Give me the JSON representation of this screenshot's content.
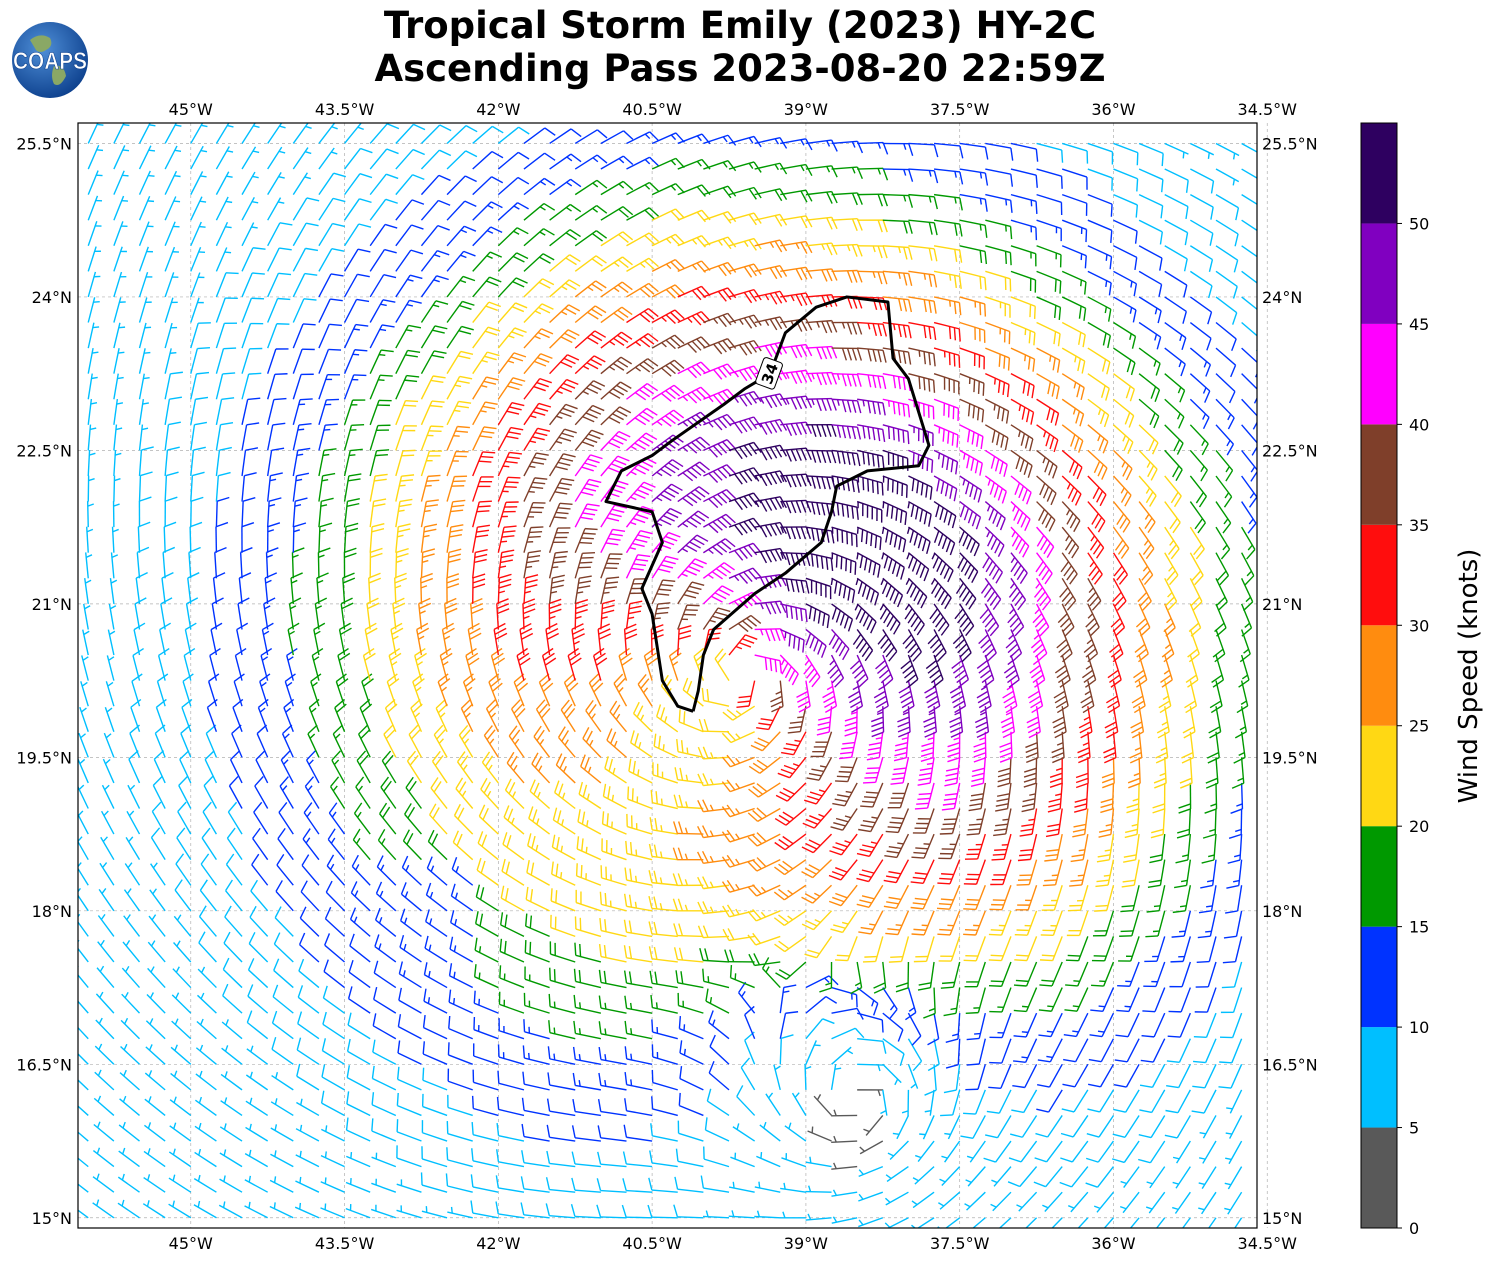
{
  "title": {
    "line1": "Tropical Storm Emily (2023) HY-2C",
    "line2": "Ascending Pass 2023-08-20 22:59Z"
  },
  "logo": {
    "text": "COAPS",
    "icon": "globe-logo-icon"
  },
  "map": {
    "lon_range": [
      -46.1,
      -34.6
    ],
    "lat_range": [
      14.9,
      25.7
    ],
    "lon_ticks": [
      -45,
      -43.5,
      -42,
      -40.5,
      -39,
      -37.5,
      -36,
      -34.5
    ],
    "lon_tick_labels": [
      "45°W",
      "43.5°W",
      "42°W",
      "40.5°W",
      "39°W",
      "37.5°W",
      "36°W",
      "34.5°W"
    ],
    "lat_ticks": [
      25.5,
      24,
      22.5,
      21,
      19.5,
      18,
      16.5,
      15
    ],
    "lat_tick_labels": [
      "25.5°N",
      "24°N",
      "22.5°N",
      "21°N",
      "19.5°N",
      "18°N",
      "16.5°N",
      "15°N"
    ],
    "grid": true,
    "storm_center": {
      "lon": -39.6,
      "lat": 20.3
    },
    "secondary_circulation_center": {
      "lon": -38.5,
      "lat": 16.2
    },
    "contour": {
      "label": "34",
      "level_knots": 34,
      "points": [
        [
          -40.1,
          19.95
        ],
        [
          -40.25,
          20.0
        ],
        [
          -40.4,
          20.25
        ],
        [
          -40.5,
          20.9
        ],
        [
          -40.6,
          21.15
        ],
        [
          -40.4,
          21.6
        ],
        [
          -40.5,
          21.9
        ],
        [
          -40.95,
          22.0
        ],
        [
          -40.8,
          22.3
        ],
        [
          -40.5,
          22.45
        ],
        [
          -40.3,
          22.6
        ],
        [
          -39.8,
          22.95
        ],
        [
          -39.6,
          23.1
        ],
        [
          -39.35,
          23.25
        ],
        [
          -39.2,
          23.65
        ],
        [
          -38.9,
          23.9
        ],
        [
          -38.6,
          24.0
        ],
        [
          -38.2,
          23.95
        ],
        [
          -38.15,
          23.4
        ],
        [
          -38.0,
          23.2
        ],
        [
          -37.8,
          22.55
        ],
        [
          -37.9,
          22.35
        ],
        [
          -38.4,
          22.3
        ],
        [
          -38.7,
          22.15
        ],
        [
          -38.75,
          21.9
        ],
        [
          -38.85,
          21.6
        ],
        [
          -39.2,
          21.3
        ],
        [
          -39.5,
          21.1
        ],
        [
          -39.9,
          20.75
        ],
        [
          -40.0,
          20.5
        ],
        [
          -40.05,
          20.15
        ],
        [
          -40.1,
          19.95
        ]
      ]
    }
  },
  "colorbar": {
    "label": "Wind Speed (knots)",
    "ticks": [
      "0",
      "5",
      "10",
      "15",
      "20",
      "25",
      "30",
      "35",
      "40",
      "45",
      "50"
    ],
    "bins": [
      {
        "from": 0,
        "to": 5,
        "color": "#595959"
      },
      {
        "from": 5,
        "to": 10,
        "color": "#00bfff"
      },
      {
        "from": 10,
        "to": 15,
        "color": "#0033ff"
      },
      {
        "from": 15,
        "to": 20,
        "color": "#009900"
      },
      {
        "from": 20,
        "to": 25,
        "color": "#ffd814"
      },
      {
        "from": 25,
        "to": 30,
        "color": "#ff8c0f"
      },
      {
        "from": 30,
        "to": 35,
        "color": "#ff0d0d"
      },
      {
        "from": 35,
        "to": 40,
        "color": "#7f3f2a"
      },
      {
        "from": 40,
        "to": 45,
        "color": "#ff00ff"
      },
      {
        "from": 45,
        "to": 50,
        "color": "#8000c0"
      },
      {
        "from": 50,
        "to": 55,
        "color": "#2e0060"
      }
    ]
  }
}
